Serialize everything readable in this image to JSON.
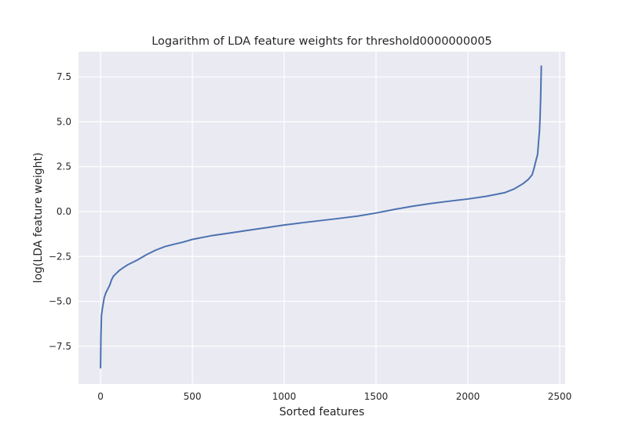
{
  "chart_data": {
    "type": "line",
    "title": "Logarithm of LDA feature weights for threshold0000000005",
    "xlabel": "Sorted features",
    "ylabel": "log(LDA feature weight)",
    "xlim": [
      -120,
      2530
    ],
    "ylim": [
      -9.6,
      8.9
    ],
    "x_ticks": [
      0,
      500,
      1000,
      1500,
      2000,
      2500
    ],
    "x_tick_labels": [
      "0",
      "500",
      "1000",
      "1500",
      "2000",
      "2500"
    ],
    "y_ticks": [
      -7.5,
      -5.0,
      -2.5,
      0.0,
      2.5,
      5.0,
      7.5
    ],
    "y_tick_labels": [
      "−7.5",
      "−5.0",
      "−2.5",
      "0.0",
      "2.5",
      "5.0",
      "7.5"
    ],
    "grid": true,
    "style": {
      "background": "#eaeaf2",
      "grid_color": "#ffffff",
      "line_color": "#4c72b0"
    },
    "series": [
      {
        "x": [
          0,
          2,
          5,
          10,
          15,
          20,
          30,
          40,
          50,
          60,
          70,
          80,
          100,
          120,
          150,
          200,
          250,
          300,
          350,
          400,
          450,
          500,
          600,
          700,
          800,
          900,
          1000,
          1100,
          1200,
          1300,
          1400,
          1500,
          1600,
          1700,
          1800,
          1900,
          2000,
          2100,
          2200,
          2250,
          2300,
          2330,
          2350,
          2360,
          2370,
          2380,
          2385,
          2390,
          2393,
          2396,
          2398,
          2400
        ],
        "y": [
          -8.7,
          -7.0,
          -5.8,
          -5.4,
          -5.1,
          -4.8,
          -4.5,
          -4.3,
          -4.1,
          -3.8,
          -3.6,
          -3.5,
          -3.3,
          -3.15,
          -2.95,
          -2.7,
          -2.4,
          -2.15,
          -1.95,
          -1.82,
          -1.7,
          -1.55,
          -1.35,
          -1.2,
          -1.05,
          -0.9,
          -0.75,
          -0.62,
          -0.5,
          -0.38,
          -0.25,
          -0.08,
          0.12,
          0.3,
          0.45,
          0.58,
          0.7,
          0.85,
          1.05,
          1.25,
          1.55,
          1.8,
          2.05,
          2.4,
          2.8,
          3.2,
          3.9,
          4.5,
          5.2,
          6.2,
          7.1,
          8.1
        ]
      }
    ]
  }
}
